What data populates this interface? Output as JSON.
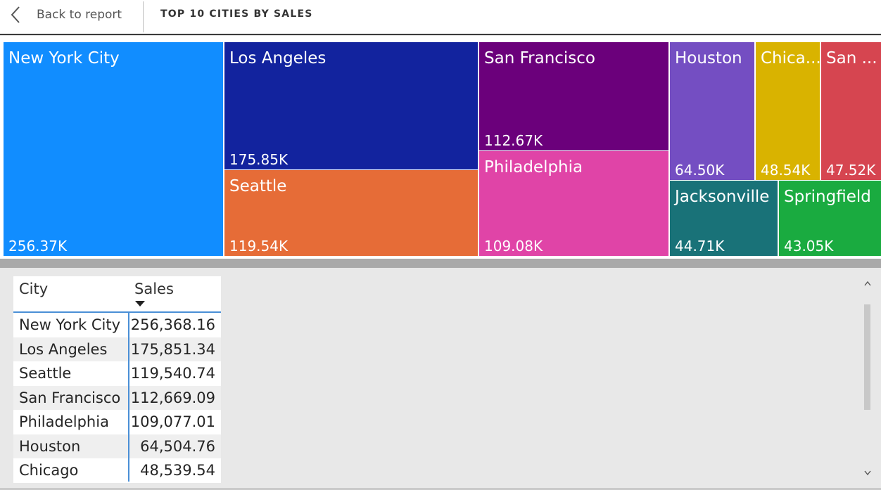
{
  "header": {
    "back_label": "Back to report",
    "title": "TOP 10 CITIES BY SALES"
  },
  "treemap": {
    "tiles": [
      {
        "name": "New York City",
        "value": "256.37K",
        "color": "#118dff"
      },
      {
        "name": "Los Angeles",
        "value": "175.85K",
        "color": "#12239e"
      },
      {
        "name": "Seattle",
        "value": "119.54K",
        "color": "#e66c37"
      },
      {
        "name": "San Francisco",
        "value": "112.67K",
        "color": "#6b007b"
      },
      {
        "name": "Philadelphia",
        "value": "109.08K",
        "color": "#e044a7"
      },
      {
        "name": "Houston",
        "value": "64.50K",
        "color": "#744ec2"
      },
      {
        "name": "Chica...",
        "value": "48.54K",
        "color": "#d9b300"
      },
      {
        "name": "San ...",
        "value": "47.52K",
        "color": "#d64550"
      },
      {
        "name": "Jacksonville",
        "value": "44.71K",
        "color": "#197278"
      },
      {
        "name": "Springfield",
        "value": "43.05K",
        "color": "#1aab40"
      }
    ]
  },
  "table": {
    "columns": [
      "City",
      "Sales"
    ],
    "sort": "descending",
    "rows": [
      {
        "city": "New York City",
        "sales": "256,368.16"
      },
      {
        "city": "Los Angeles",
        "sales": "175,851.34"
      },
      {
        "city": "Seattle",
        "sales": "119,540.74"
      },
      {
        "city": "San Francisco",
        "sales": "112,669.09"
      },
      {
        "city": "Philadelphia",
        "sales": "109,077.01"
      },
      {
        "city": "Houston",
        "sales": "64,504.76"
      },
      {
        "city": "Chicago",
        "sales": "48,539.54"
      }
    ]
  },
  "scrollbar": {
    "up_icon": "chevron-up-icon",
    "down_icon": "chevron-down-icon"
  }
}
